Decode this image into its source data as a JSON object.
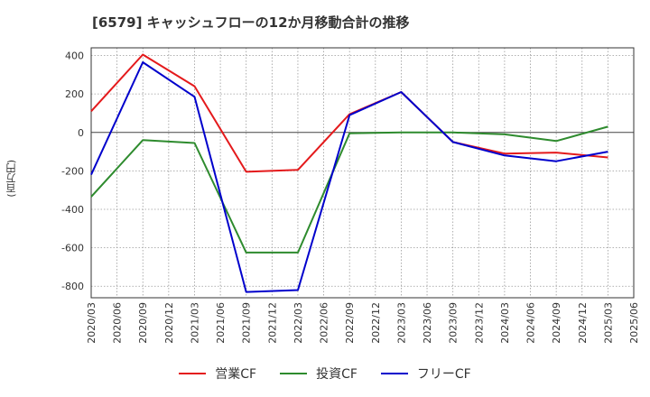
{
  "chart_data": {
    "type": "line",
    "title": "[6579]  キャッシュフローの12か月移動合計の推移",
    "ylabel": "(百万円)",
    "ylim": [
      -860,
      440
    ],
    "yticks": [
      400,
      200,
      0,
      -200,
      -400,
      -600,
      -800
    ],
    "grid": true,
    "legend_position": "bottom-center",
    "x": [
      "2020/03",
      "2020/06",
      "2020/09",
      "2020/12",
      "2021/03",
      "2021/06",
      "2021/09",
      "2021/12",
      "2022/03",
      "2022/06",
      "2022/09",
      "2022/12",
      "2023/03",
      "2023/06",
      "2023/09",
      "2023/12",
      "2024/03",
      "2024/06",
      "2024/09",
      "2024/12",
      "2025/03",
      "2025/06"
    ],
    "series": [
      {
        "name": "営業CF",
        "color": "#e41a1c",
        "values": [
          110,
          null,
          405,
          null,
          240,
          null,
          -205,
          null,
          -195,
          null,
          95,
          null,
          210,
          null,
          -50,
          null,
          -110,
          null,
          -105,
          null,
          -130,
          null
        ]
      },
      {
        "name": "投資CF",
        "color": "#2e8b2e",
        "values": [
          -335,
          null,
          -40,
          null,
          -55,
          null,
          -625,
          null,
          -625,
          null,
          -5,
          null,
          0,
          null,
          0,
          null,
          -10,
          null,
          -45,
          null,
          30,
          null
        ]
      },
      {
        "name": "フリーCF",
        "color": "#0000cc",
        "values": [
          -220,
          null,
          365,
          null,
          185,
          null,
          -830,
          null,
          -820,
          null,
          90,
          null,
          210,
          null,
          -50,
          null,
          -120,
          null,
          -150,
          null,
          -100,
          null
        ]
      }
    ]
  }
}
